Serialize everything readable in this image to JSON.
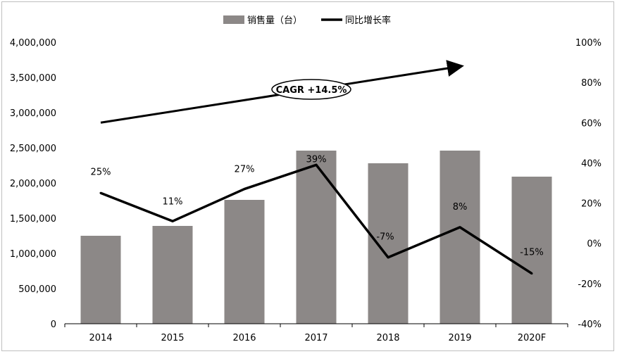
{
  "chart_data": {
    "type": "bar",
    "categories": [
      "2014",
      "2015",
      "2016",
      "2017",
      "2018",
      "2019",
      "2020F"
    ],
    "series": [
      {
        "name": "销售量（台）",
        "type": "bar",
        "axis": "left",
        "color": "#8c8887",
        "values": [
          1250000,
          1390000,
          1760000,
          2460000,
          2280000,
          2460000,
          2090000
        ]
      },
      {
        "name": "同比增长率",
        "type": "line",
        "axis": "right",
        "color": "#000000",
        "values": [
          25,
          11,
          27,
          39,
          -7,
          8,
          -15
        ],
        "labels": [
          "25%",
          "11%",
          "27%",
          "39%",
          "-7%",
          "8%",
          "-15%"
        ]
      }
    ],
    "y_left": {
      "ylim": [
        0,
        4000000
      ],
      "ticks": [
        0,
        500000,
        1000000,
        1500000,
        2000000,
        2500000,
        3000000,
        3500000,
        4000000
      ],
      "tick_labels": [
        "0",
        "500,000",
        "1,000,000",
        "1,500,000",
        "2,000,000",
        "2,500,000",
        "3,000,000",
        "3,500,000",
        "4,000,000"
      ]
    },
    "y_right": {
      "ylim": [
        -40,
        100
      ],
      "ticks": [
        -40,
        -20,
        0,
        20,
        40,
        60,
        80,
        100
      ],
      "tick_labels": [
        "-40%",
        "-20%",
        "0%",
        "20%",
        "40%",
        "60%",
        "80%",
        "100%"
      ]
    },
    "annotation": {
      "text": "CAGR +14.5%",
      "arrow_from": {
        "x": "2014",
        "y": 60
      },
      "arrow_to": {
        "x": "2019",
        "y": 88
      }
    },
    "legend": {
      "placement": "top-center"
    },
    "grid": false
  }
}
